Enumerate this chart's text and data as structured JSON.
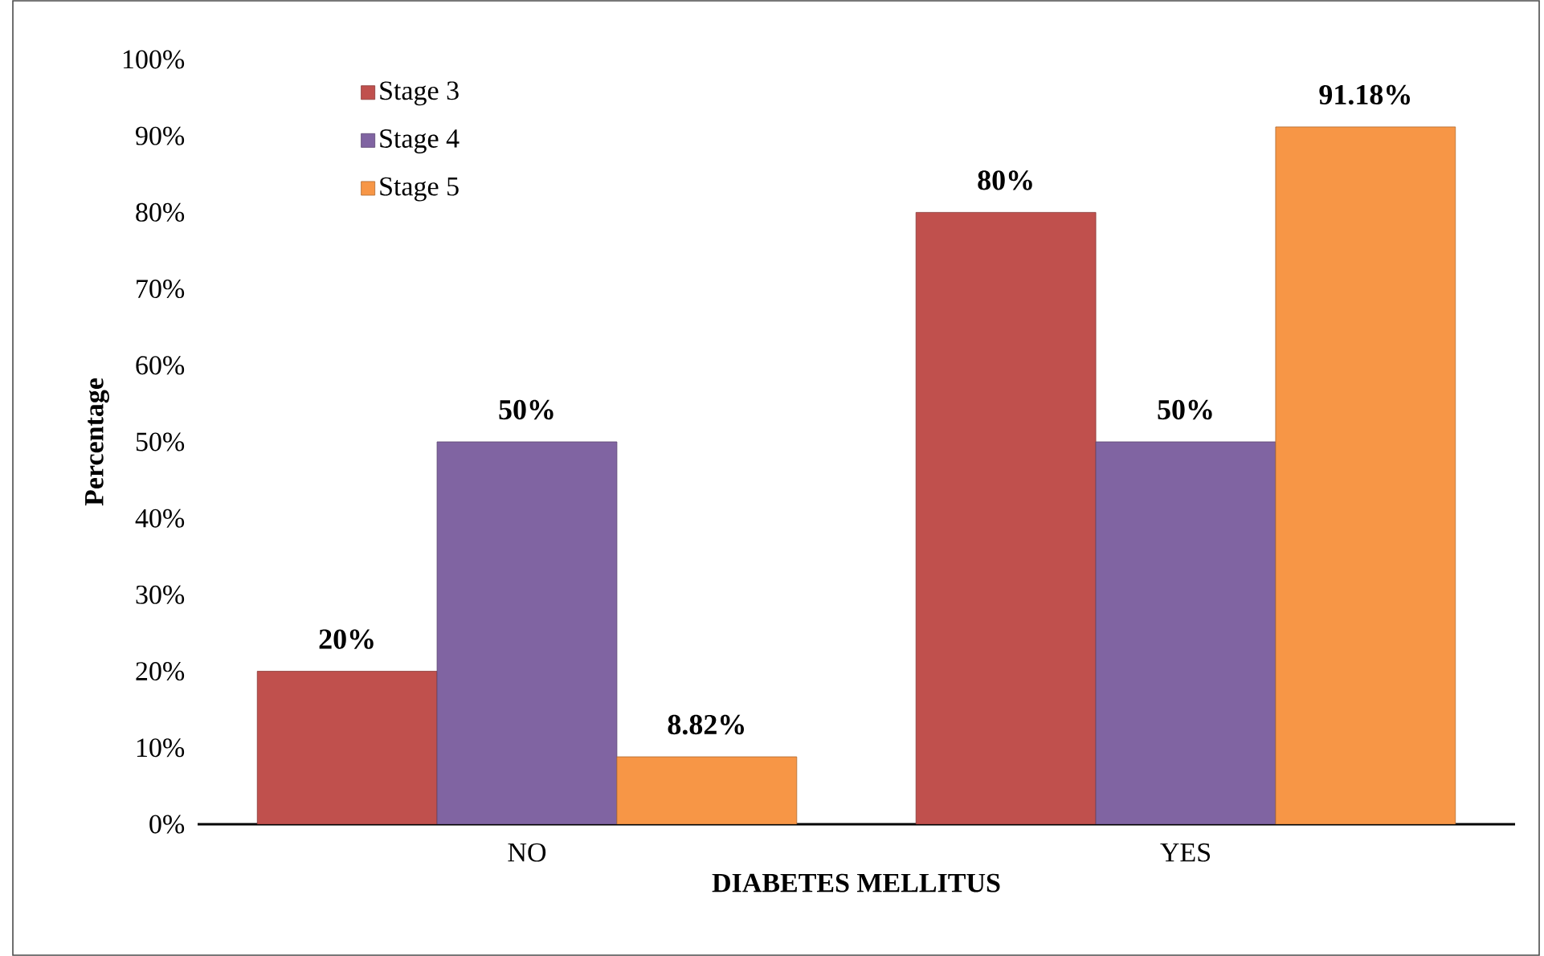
{
  "chart_data": {
    "type": "bar",
    "xlabel": "DIABETES MELLITUS",
    "ylabel": "Percentage",
    "categories": [
      "NO",
      "YES"
    ],
    "series": [
      {
        "name": "Stage 3",
        "color": "#c0504d",
        "values": [
          20,
          80
        ],
        "value_labels": [
          "20%",
          "80%"
        ]
      },
      {
        "name": "Stage 4",
        "color": "#8064a2",
        "values": [
          50,
          50
        ],
        "value_labels": [
          "50%",
          "50%"
        ]
      },
      {
        "name": "Stage 5",
        "color": "#f79646",
        "values": [
          8.82,
          91.18
        ],
        "value_labels": [
          "8.82%",
          "91.18%"
        ]
      }
    ],
    "ylim": [
      0,
      100
    ],
    "yticks": [
      {
        "value": 0,
        "label": "0%"
      },
      {
        "value": 10,
        "label": "10%"
      },
      {
        "value": 20,
        "label": "20%"
      },
      {
        "value": 30,
        "label": "30%"
      },
      {
        "value": 40,
        "label": "40%"
      },
      {
        "value": 50,
        "label": "50%"
      },
      {
        "value": 60,
        "label": "60%"
      },
      {
        "value": 70,
        "label": "70%"
      },
      {
        "value": 80,
        "label": "80%"
      },
      {
        "value": 90,
        "label": "90%"
      },
      {
        "value": 100,
        "label": "100%"
      }
    ],
    "legend": "top left",
    "grid": false
  }
}
